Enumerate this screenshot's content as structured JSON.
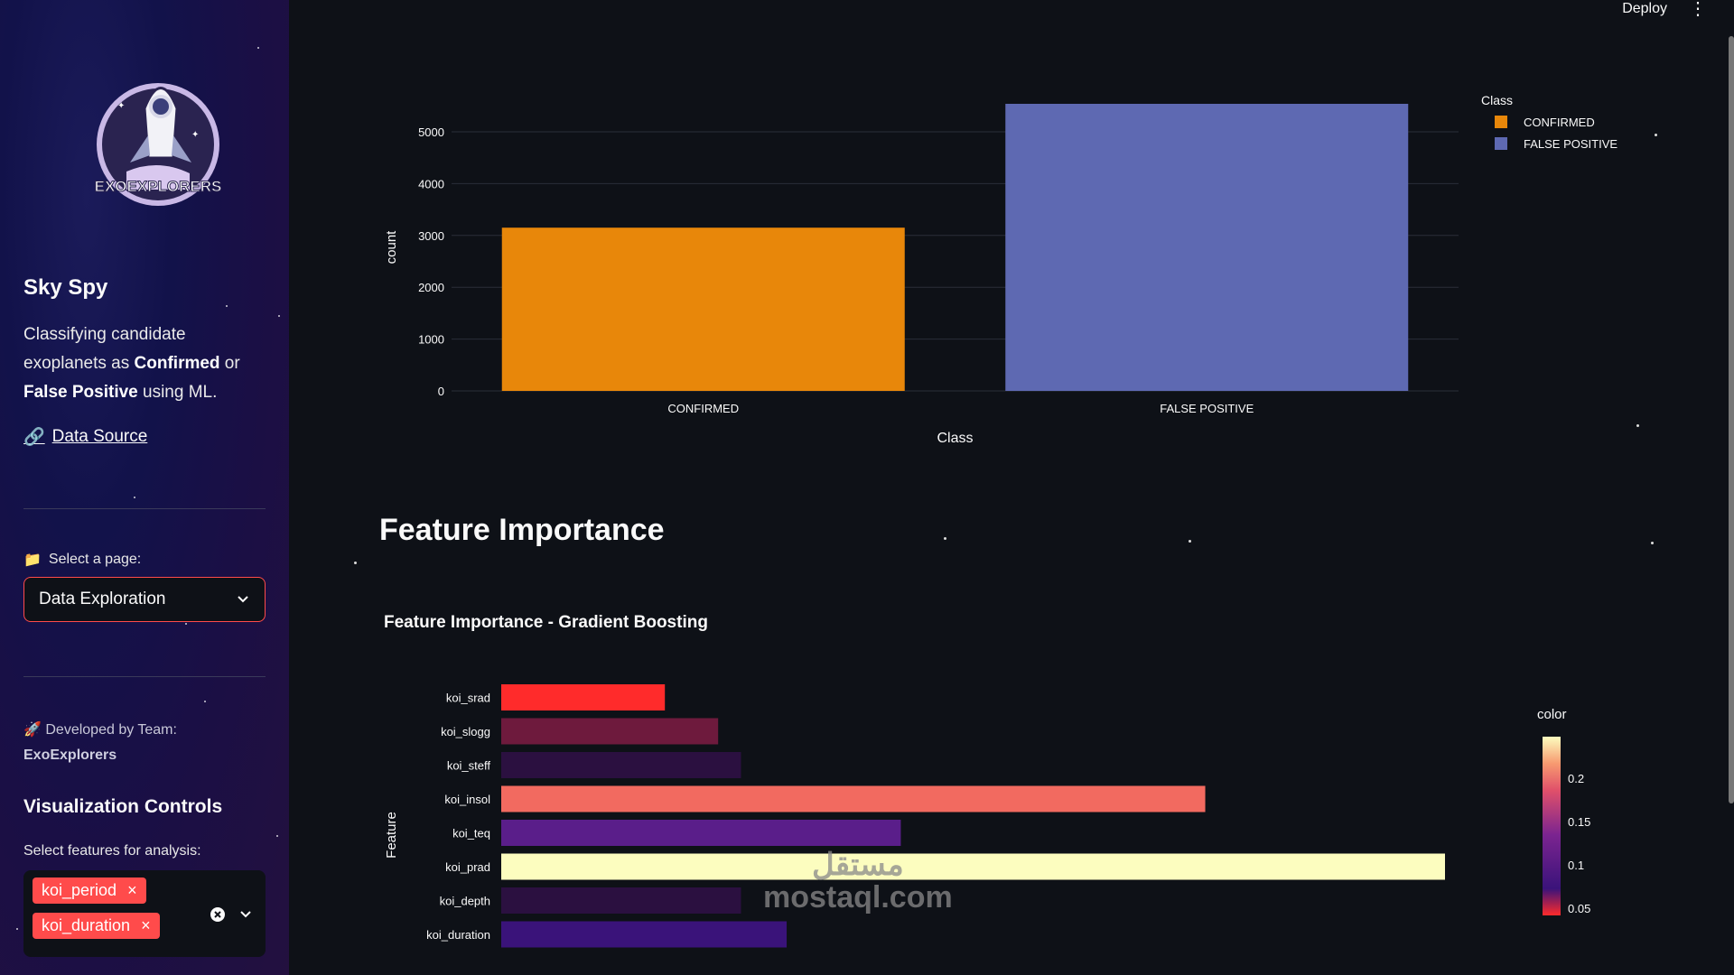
{
  "topbar": {
    "deploy_label": "Deploy",
    "menu_icon": "kebab-menu-icon"
  },
  "sidebar": {
    "app_title": "Sky Spy",
    "logo_text": "EXOEXPLORERS",
    "description_parts": [
      "Classifying candidate exoplanets as ",
      "Confirmed",
      " or ",
      "False Positive",
      " using ML."
    ],
    "data_source_link": "Data Source",
    "page_select_label": "Select a page:",
    "page_select_value": "Data Exploration",
    "developed_by_label": "Developed by Team:",
    "team_name": "ExoExplorers",
    "viz_controls_title": "Visualization Controls",
    "features_label": "Select features for analysis:",
    "selected_features": [
      "koi_period",
      "koi_duration"
    ]
  },
  "main": {
    "feature_importance_heading": "Feature Importance"
  },
  "chart_data": [
    {
      "type": "bar",
      "title": "",
      "xlabel": "Class",
      "ylabel": "count",
      "categories": [
        "CONFIRMED",
        "FALSE POSITIVE"
      ],
      "values": [
        3150,
        5540
      ],
      "colors": [
        "#e8870a",
        "#5e69b2"
      ],
      "ylim": [
        0,
        5540
      ],
      "yticks": [
        0,
        1000,
        2000,
        3000,
        4000,
        5000
      ],
      "legend": {
        "title": "Class",
        "position": "top-right",
        "entries": [
          "CONFIRMED",
          "FALSE POSITIVE"
        ]
      },
      "grid": true
    },
    {
      "type": "bar",
      "orientation": "horizontal",
      "title": "Feature Importance - Gradient Boosting",
      "ylabel": "Feature",
      "categories": [
        "koi_srad",
        "koi_slogg",
        "koi_steff",
        "koi_insol",
        "koi_teq",
        "koi_prad",
        "koi_depth",
        "koi_duration"
      ],
      "values": [
        0.043,
        0.057,
        0.063,
        0.185,
        0.105,
        0.248,
        0.063,
        0.075
      ],
      "colorbar": {
        "title": "color",
        "ticks": [
          "0.05",
          "0.1",
          "0.15",
          "0.2"
        ]
      }
    }
  ]
}
